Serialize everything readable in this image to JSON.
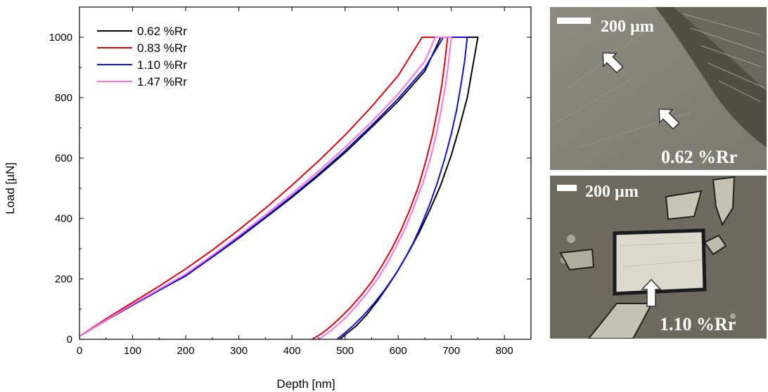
{
  "chart_data": {
    "type": "line",
    "xlabel": "Depth [nm]",
    "ylabel": "Load [µN]",
    "xlim": [
      0,
      850
    ],
    "ylim": [
      0,
      1100
    ],
    "xticks": [
      0,
      100,
      200,
      300,
      400,
      500,
      600,
      700,
      800
    ],
    "yticks": [
      0,
      200,
      400,
      600,
      800,
      1000
    ],
    "grid": false,
    "legend_position": "top-left",
    "series": [
      {
        "name": "0.62 %Rr",
        "color": "#000000",
        "max_load": 1000,
        "loading": {
          "x": [
            0,
            50,
            100,
            150,
            200,
            250,
            300,
            350,
            400,
            450,
            500,
            550,
            600,
            650,
            680
          ],
          "y": [
            10,
            63,
            113,
            162,
            210,
            272,
            335,
            402,
            470,
            542,
            618,
            702,
            788,
            887,
            1000
          ]
        },
        "hold": {
          "x": [
            680,
            750
          ],
          "y": [
            1000,
            1000
          ]
        },
        "unloading": {
          "x": [
            750,
            740,
            730,
            715,
            700,
            680,
            660,
            640,
            620,
            600,
            580,
            560,
            540,
            520,
            500,
            490
          ],
          "y": [
            1000,
            900,
            800,
            700,
            610,
            510,
            430,
            355,
            290,
            230,
            175,
            125,
            80,
            43,
            15,
            0
          ]
        }
      },
      {
        "name": "0.83 %Rr",
        "color": "#e8000b",
        "max_load": 1000,
        "loading": {
          "x": [
            0,
            50,
            100,
            150,
            200,
            250,
            300,
            350,
            400,
            450,
            500,
            550,
            600,
            645
          ],
          "y": [
            10,
            68,
            122,
            176,
            233,
            295,
            362,
            434,
            510,
            590,
            676,
            770,
            873,
            1000
          ]
        },
        "hold": {
          "x": [
            645,
            693
          ],
          "y": [
            1000,
            1000
          ]
        },
        "unloading": {
          "x": [
            693,
            688,
            682,
            674,
            665,
            652,
            638,
            622,
            605,
            588,
            570,
            550,
            530,
            510,
            490,
            470,
            455,
            438
          ],
          "y": [
            1000,
            920,
            840,
            760,
            680,
            590,
            505,
            430,
            360,
            300,
            245,
            190,
            145,
            105,
            70,
            38,
            18,
            0
          ]
        }
      },
      {
        "name": "1.10 %Rr",
        "color": "#1010dd",
        "max_load": 1000,
        "loading": {
          "x": [
            0,
            50,
            100,
            150,
            200,
            250,
            300,
            350,
            400,
            450,
            500,
            550,
            600,
            650,
            685
          ],
          "y": [
            10,
            63,
            113,
            162,
            211,
            273,
            338,
            405,
            474,
            547,
            624,
            708,
            797,
            897,
            1000
          ]
        },
        "hold": {
          "x": [
            685,
            730
          ],
          "y": [
            1000,
            1000
          ]
        },
        "unloading": {
          "x": [
            730,
            725,
            718,
            710,
            700,
            688,
            674,
            660,
            645,
            630,
            612,
            595,
            575,
            555,
            535,
            515,
            500,
            485
          ],
          "y": [
            1000,
            920,
            840,
            760,
            680,
            600,
            520,
            450,
            385,
            325,
            265,
            215,
            165,
            120,
            80,
            45,
            22,
            0
          ]
        }
      },
      {
        "name": "1.47 %Rr",
        "color": "#ff70e8",
        "max_load": 1000,
        "loading": {
          "x": [
            0,
            50,
            100,
            150,
            200,
            250,
            300,
            350,
            400,
            450,
            500,
            550,
            600,
            650,
            670
          ],
          "y": [
            10,
            64,
            116,
            166,
            216,
            278,
            343,
            412,
            482,
            557,
            635,
            720,
            812,
            920,
            1000
          ]
        },
        "hold": {
          "x": [
            670,
            700
          ],
          "y": [
            1000,
            1000
          ]
        },
        "unloading": {
          "x": [
            700,
            695,
            689,
            681,
            672,
            660,
            646,
            630,
            614,
            597,
            579,
            560,
            540,
            520,
            500,
            480,
            465,
            450
          ],
          "y": [
            1000,
            920,
            840,
            760,
            680,
            595,
            515,
            440,
            370,
            310,
            250,
            197,
            150,
            108,
            70,
            38,
            18,
            0
          ]
        }
      }
    ]
  },
  "micrographs": [
    {
      "scale_bar": "200  µm",
      "sample": "0.62 %Rr"
    },
    {
      "scale_bar": "200  µm",
      "sample": "1.10 %Rr"
    }
  ]
}
